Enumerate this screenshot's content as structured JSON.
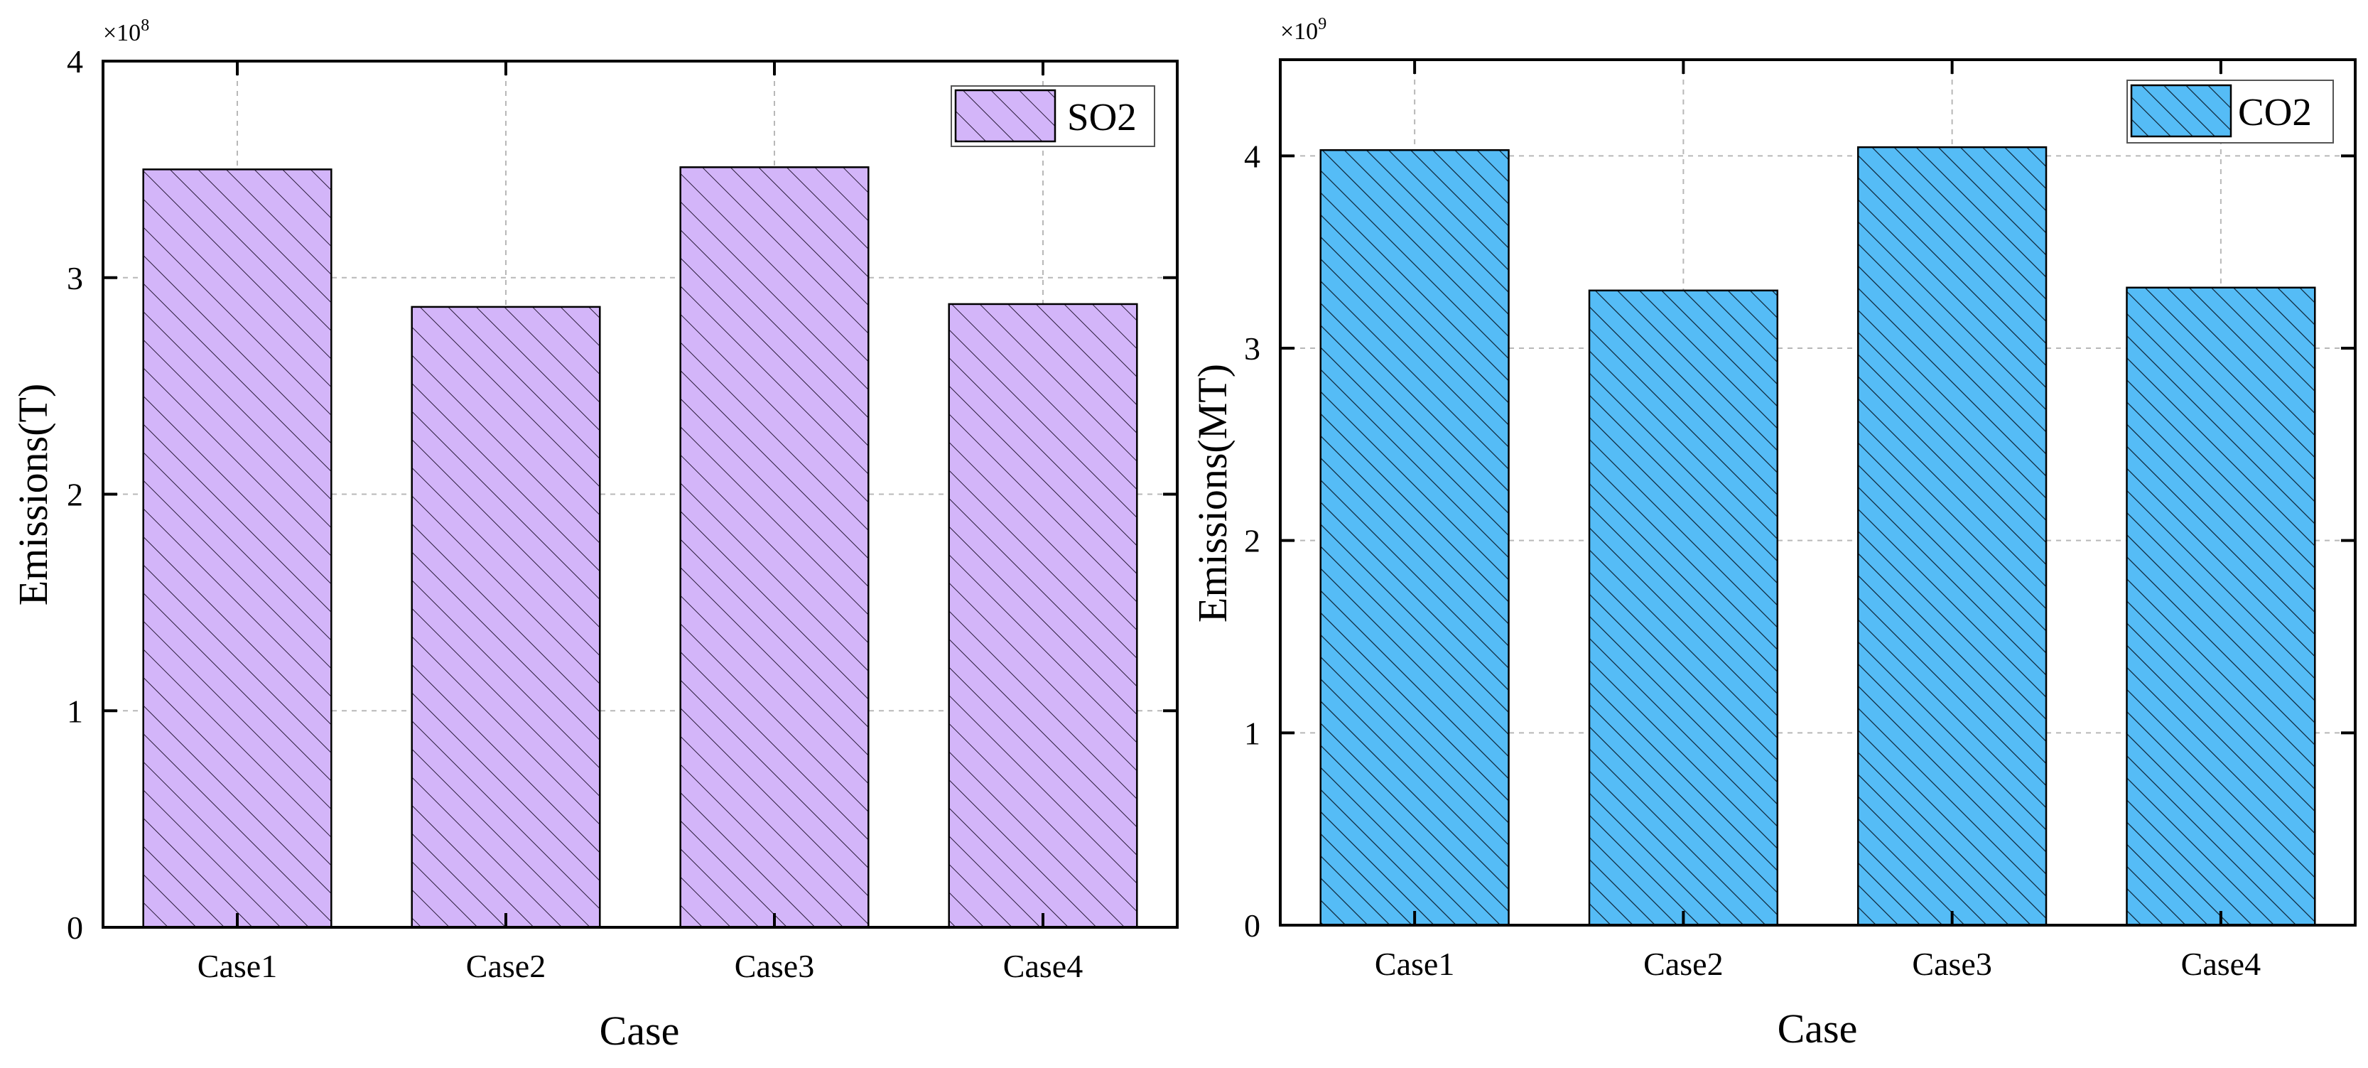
{
  "chart_data": [
    {
      "type": "bar",
      "id": "so2",
      "categories": [
        "Case1",
        "Case2",
        "Case3",
        "Case4"
      ],
      "series": [
        {
          "name": "SO2",
          "values": [
            350000000,
            286500000,
            351000000,
            287800000
          ]
        }
      ],
      "xlabel": "Case",
      "ylabel": "Emissions(T)",
      "ylim": [
        0,
        400000000
      ],
      "yticks": [
        0,
        1,
        2,
        3,
        4
      ],
      "scale_base": "×10",
      "scale_exp": "8",
      "scale_value": 100000000,
      "legend": [
        "SO2"
      ],
      "legend_position": "top-right",
      "grid": true,
      "bar_color": "#D3B5F9",
      "hatch": "diagonal"
    },
    {
      "type": "bar",
      "id": "co2",
      "categories": [
        "Case1",
        "Case2",
        "Case3",
        "Case4"
      ],
      "series": [
        {
          "name": "CO2",
          "values": [
            4030000000,
            3300000000,
            4045000000,
            3315000000
          ]
        }
      ],
      "xlabel": "Case",
      "ylabel": "Emissions(MT)",
      "ylim": [
        0,
        4500000000
      ],
      "yticks": [
        0,
        1,
        2,
        3,
        4
      ],
      "scale_base": "×10",
      "scale_exp": "9",
      "scale_value": 1000000000,
      "legend": [
        "CO2"
      ],
      "legend_position": "top-right",
      "grid": true,
      "bar_color": "#55BCF6",
      "hatch": "diagonal"
    }
  ]
}
